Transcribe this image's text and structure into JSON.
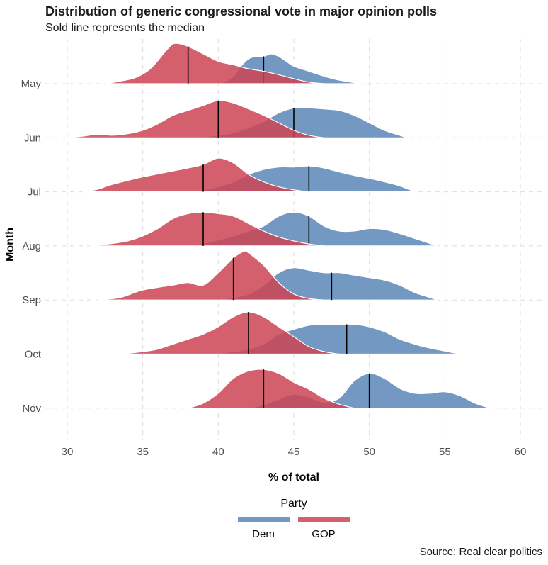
{
  "title": "Distribution of generic congressional vote in major opinion polls",
  "subtitle": "Sold line represents the median",
  "caption": "Source: Real clear politics",
  "chart_data": {
    "type": "area",
    "subtype": "ridgeline-density",
    "xlabel": "% of total",
    "ylabel": "Month",
    "xlim": [
      30,
      60
    ],
    "x_ticks": [
      30,
      35,
      40,
      45,
      50,
      55,
      60
    ],
    "categories": [
      "May",
      "Jun",
      "Jul",
      "Aug",
      "Sep",
      "Oct",
      "Nov"
    ],
    "grid": true,
    "legend": {
      "title": "Party",
      "position": "bottom"
    },
    "series": [
      {
        "name": "Dem",
        "color": "#5b87b8",
        "ridges": [
          {
            "month": "May",
            "median": 43,
            "density": [
              [
                40.2,
                0
              ],
              [
                41,
                0.15
              ],
              [
                41.5,
                0.35
              ],
              [
                42,
                0.5
              ],
              [
                42.5,
                0.55
              ],
              [
                43,
                0.55
              ],
              [
                43.5,
                0.6
              ],
              [
                44,
                0.55
              ],
              [
                44.5,
                0.45
              ],
              [
                45,
                0.35
              ],
              [
                46,
                0.25
              ],
              [
                47,
                0.15
              ],
              [
                48,
                0.07
              ],
              [
                49,
                0.02
              ],
              [
                49.5,
                0
              ]
            ]
          },
          {
            "month": "Jun",
            "median": 45,
            "density": [
              [
                38.5,
                0
              ],
              [
                40,
                0.05
              ],
              [
                41,
                0.1
              ],
              [
                42,
                0.2
              ],
              [
                43,
                0.33
              ],
              [
                44,
                0.5
              ],
              [
                45,
                0.6
              ],
              [
                46,
                0.6
              ],
              [
                47,
                0.58
              ],
              [
                48,
                0.55
              ],
              [
                49,
                0.45
              ],
              [
                50,
                0.3
              ],
              [
                51,
                0.15
              ],
              [
                52,
                0.05
              ],
              [
                52.5,
                0
              ]
            ]
          },
          {
            "month": "Jul",
            "median": 46,
            "density": [
              [
                38.5,
                0
              ],
              [
                40,
                0.1
              ],
              [
                41,
                0.2
              ],
              [
                42,
                0.35
              ],
              [
                43,
                0.45
              ],
              [
                44,
                0.5
              ],
              [
                45,
                0.5
              ],
              [
                46,
                0.52
              ],
              [
                47,
                0.48
              ],
              [
                48,
                0.4
              ],
              [
                49,
                0.33
              ],
              [
                50,
                0.27
              ],
              [
                51,
                0.2
              ],
              [
                52,
                0.12
              ],
              [
                53,
                0
              ]
            ]
          },
          {
            "month": "Aug",
            "median": 46,
            "density": [
              [
                37.5,
                0
              ],
              [
                39,
                0.05
              ],
              [
                40,
                0.12
              ],
              [
                41,
                0.2
              ],
              [
                42,
                0.3
              ],
              [
                43,
                0.4
              ],
              [
                44,
                0.6
              ],
              [
                45,
                0.68
              ],
              [
                46,
                0.6
              ],
              [
                47,
                0.4
              ],
              [
                48,
                0.3
              ],
              [
                49,
                0.3
              ],
              [
                50,
                0.35
              ],
              [
                51,
                0.33
              ],
              [
                52,
                0.25
              ],
              [
                53,
                0.15
              ],
              [
                54,
                0.05
              ],
              [
                54.5,
                0
              ]
            ]
          },
          {
            "month": "Sep",
            "median": 47.5,
            "density": [
              [
                40,
                0
              ],
              [
                41,
                0.05
              ],
              [
                42,
                0.12
              ],
              [
                43,
                0.3
              ],
              [
                44,
                0.55
              ],
              [
                45,
                0.65
              ],
              [
                46,
                0.6
              ],
              [
                47,
                0.55
              ],
              [
                48,
                0.55
              ],
              [
                49,
                0.5
              ],
              [
                50,
                0.45
              ],
              [
                51,
                0.4
              ],
              [
                52,
                0.3
              ],
              [
                53,
                0.15
              ],
              [
                54,
                0.05
              ],
              [
                54.5,
                0
              ]
            ]
          },
          {
            "month": "Oct",
            "median": 48.5,
            "density": [
              [
                39.5,
                0
              ],
              [
                41,
                0.05
              ],
              [
                42,
                0.1
              ],
              [
                43,
                0.2
              ],
              [
                44,
                0.4
              ],
              [
                45,
                0.5
              ],
              [
                46,
                0.58
              ],
              [
                47,
                0.6
              ],
              [
                48,
                0.6
              ],
              [
                49,
                0.6
              ],
              [
                50,
                0.55
              ],
              [
                51,
                0.45
              ],
              [
                52,
                0.3
              ],
              [
                53,
                0.2
              ],
              [
                54,
                0.12
              ],
              [
                55,
                0.06
              ],
              [
                56,
                0
              ]
            ]
          },
          {
            "month": "Nov",
            "median": 50,
            "density": [
              [
                42,
                0
              ],
              [
                43,
                0.07
              ],
              [
                44,
                0.18
              ],
              [
                45,
                0.28
              ],
              [
                46,
                0.22
              ],
              [
                47,
                0.12
              ],
              [
                48,
                0.2
              ],
              [
                49,
                0.55
              ],
              [
                50,
                0.7
              ],
              [
                51,
                0.6
              ],
              [
                52,
                0.4
              ],
              [
                53,
                0.3
              ],
              [
                54,
                0.3
              ],
              [
                55,
                0.33
              ],
              [
                56,
                0.25
              ],
              [
                57,
                0.1
              ],
              [
                58,
                0
              ]
            ]
          }
        ]
      },
      {
        "name": "GOP",
        "color": "#cc4455",
        "ridges": [
          {
            "month": "May",
            "median": 38,
            "density": [
              [
                32.5,
                0
              ],
              [
                33.5,
                0.05
              ],
              [
                34.5,
                0.12
              ],
              [
                35.5,
                0.3
              ],
              [
                36.5,
                0.65
              ],
              [
                37,
                0.8
              ],
              [
                37.5,
                0.8
              ],
              [
                38,
                0.75
              ],
              [
                39,
                0.6
              ],
              [
                40,
                0.45
              ],
              [
                41,
                0.38
              ],
              [
                42,
                0.3
              ],
              [
                43,
                0.25
              ],
              [
                44,
                0.18
              ],
              [
                45,
                0.1
              ],
              [
                46,
                0.03
              ],
              [
                47,
                0
              ]
            ]
          },
          {
            "month": "Jun",
            "median": 40,
            "density": [
              [
                30,
                0
              ],
              [
                31,
                0.03
              ],
              [
                32,
                0.07
              ],
              [
                33,
                0.05
              ],
              [
                34,
                0.08
              ],
              [
                35,
                0.15
              ],
              [
                36,
                0.28
              ],
              [
                37,
                0.45
              ],
              [
                38,
                0.55
              ],
              [
                39,
                0.65
              ],
              [
                40,
                0.75
              ],
              [
                41,
                0.7
              ],
              [
                42,
                0.58
              ],
              [
                43,
                0.45
              ],
              [
                44,
                0.3
              ],
              [
                45,
                0.15
              ],
              [
                46,
                0.05
              ],
              [
                47,
                0
              ]
            ]
          },
          {
            "month": "Jul",
            "median": 39,
            "density": [
              [
                31,
                0
              ],
              [
                32,
                0.05
              ],
              [
                33,
                0.15
              ],
              [
                35,
                0.3
              ],
              [
                37,
                0.42
              ],
              [
                38,
                0.48
              ],
              [
                39,
                0.55
              ],
              [
                40,
                0.68
              ],
              [
                41,
                0.58
              ],
              [
                42,
                0.35
              ],
              [
                43,
                0.2
              ],
              [
                44,
                0.1
              ],
              [
                45,
                0.04
              ],
              [
                46,
                0
              ]
            ]
          },
          {
            "month": "Aug",
            "median": 39,
            "density": [
              [
                31.5,
                0
              ],
              [
                33,
                0.05
              ],
              [
                34,
                0.1
              ],
              [
                35,
                0.2
              ],
              [
                36,
                0.35
              ],
              [
                37,
                0.55
              ],
              [
                38,
                0.65
              ],
              [
                39,
                0.68
              ],
              [
                40,
                0.65
              ],
              [
                41,
                0.6
              ],
              [
                42,
                0.45
              ],
              [
                43,
                0.3
              ],
              [
                44,
                0.18
              ],
              [
                45,
                0.1
              ],
              [
                46,
                0.04
              ],
              [
                47,
                0
              ]
            ]
          },
          {
            "month": "Sep",
            "median": 41,
            "density": [
              [
                32,
                0
              ],
              [
                33.5,
                0.05
              ],
              [
                35,
                0.2
              ],
              [
                37,
                0.3
              ],
              [
                38,
                0.35
              ],
              [
                39,
                0.3
              ],
              [
                40,
                0.55
              ],
              [
                41,
                0.85
              ],
              [
                41.7,
                0.98
              ],
              [
                42,
                0.95
              ],
              [
                43,
                0.7
              ],
              [
                44,
                0.35
              ],
              [
                45,
                0.12
              ],
              [
                46,
                0.03
              ],
              [
                47,
                0
              ]
            ]
          },
          {
            "month": "Oct",
            "median": 42,
            "density": [
              [
                33.5,
                0
              ],
              [
                35,
                0.05
              ],
              [
                36,
                0.1
              ],
              [
                37,
                0.2
              ],
              [
                38,
                0.3
              ],
              [
                39,
                0.4
              ],
              [
                40,
                0.55
              ],
              [
                41,
                0.75
              ],
              [
                42,
                0.85
              ],
              [
                43,
                0.75
              ],
              [
                44,
                0.55
              ],
              [
                45,
                0.35
              ],
              [
                46,
                0.15
              ],
              [
                47,
                0.05
              ],
              [
                48,
                0
              ]
            ]
          },
          {
            "month": "Nov",
            "median": 43,
            "density": [
              [
                38,
                0
              ],
              [
                39,
                0.1
              ],
              [
                40,
                0.3
              ],
              [
                41,
                0.6
              ],
              [
                42,
                0.75
              ],
              [
                43,
                0.78
              ],
              [
                44,
                0.7
              ],
              [
                45,
                0.52
              ],
              [
                46,
                0.38
              ],
              [
                47,
                0.2
              ],
              [
                48,
                0.08
              ],
              [
                49,
                0
              ]
            ]
          }
        ]
      }
    ]
  }
}
